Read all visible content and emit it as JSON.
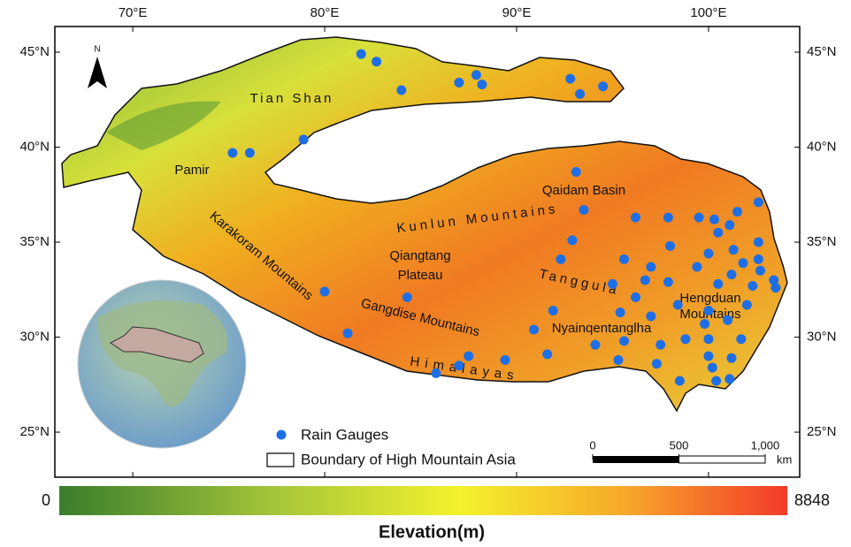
{
  "map": {
    "xlim": [
      65.94,
      104.75
    ],
    "ylim": [
      22.63,
      46.35
    ],
    "xticks": [
      {
        "value": 70,
        "label": "70°E"
      },
      {
        "value": 80,
        "label": "80°E"
      },
      {
        "value": 90,
        "label": "90°E"
      },
      {
        "value": 100,
        "label": "100°E"
      }
    ],
    "yticks": [
      {
        "value": 25,
        "label": "25°N"
      },
      {
        "value": 30,
        "label": "30°N"
      },
      {
        "value": 35,
        "label": "35°N"
      },
      {
        "value": 40,
        "label": "40°N"
      },
      {
        "value": 45,
        "label": "45°N"
      }
    ],
    "north": "N",
    "regions": [
      "Tian Shan",
      "Pamir",
      "Karakoram Mountains",
      "Kunlun Mountains",
      "Qiangtang",
      "Plateau",
      "Qaidam Basin",
      "Gangdise Mountains",
      "Himalayas",
      "Tanggula",
      "Nyainqentanglha",
      "Hengduan",
      "Mountains"
    ],
    "gauges": {
      "name": "Rain Gauges",
      "color": "#1e6fe6",
      "lon": [
        81.9,
        82.7,
        84.0,
        87.0,
        87.9,
        88.2,
        92.8,
        93.3,
        94.5,
        78.9,
        75.2,
        76.1,
        93.1,
        102.6,
        93.5,
        96.2,
        97.9,
        99.5,
        100.3,
        101.5,
        101.1,
        100.5,
        92.9,
        98.0,
        101.3,
        102.6,
        92.3,
        95.6,
        100.0,
        97.0,
        99.4,
        101.8,
        102.6,
        95.0,
        96.2,
        96.7,
        97.9,
        100.5,
        101.2,
        102.7,
        102.3,
        103.4,
        103.5,
        80.0,
        84.3,
        95.4,
        97.0,
        98.4,
        100.0,
        102.0,
        91.9,
        90.9,
        99.8,
        101.0,
        81.2,
        87.5,
        89.4,
        91.6,
        87.0,
        85.8,
        94.1,
        95.6,
        97.5,
        98.8,
        100.0,
        101.7,
        100.0,
        101.2,
        97.3,
        100.2,
        100.4,
        98.5,
        101.1,
        95.3
      ],
      "lat": [
        44.9,
        44.5,
        43.0,
        43.4,
        43.8,
        43.3,
        43.6,
        42.8,
        43.2,
        40.4,
        39.7,
        39.7,
        38.7,
        37.1,
        36.7,
        36.3,
        36.3,
        36.3,
        36.2,
        36.6,
        35.9,
        35.5,
        35.1,
        34.8,
        34.6,
        35.0,
        34.1,
        34.1,
        34.4,
        33.7,
        33.7,
        33.9,
        34.1,
        32.8,
        32.1,
        33.0,
        32.9,
        32.8,
        33.3,
        33.5,
        32.7,
        33.0,
        32.6,
        32.4,
        32.1,
        31.3,
        31.1,
        31.7,
        31.4,
        31.7,
        31.4,
        30.4,
        30.7,
        30.9,
        30.2,
        29.0,
        28.8,
        29.1,
        28.5,
        28.1,
        29.6,
        29.8,
        29.6,
        29.9,
        29.9,
        29.9,
        29.0,
        28.9,
        28.6,
        28.4,
        27.7,
        27.7,
        27.8,
        28.8
      ]
    },
    "boundary_label": "Boundary of High Mountain Asia",
    "scalebar": {
      "lim": [
        0,
        1000
      ],
      "ticks": [
        0,
        500,
        {
          "value": 1000,
          "label": "1,000"
        }
      ],
      "unit": "km"
    }
  },
  "colorbar": {
    "min": 0,
    "max": 8848,
    "title": "Elevation(m)"
  }
}
